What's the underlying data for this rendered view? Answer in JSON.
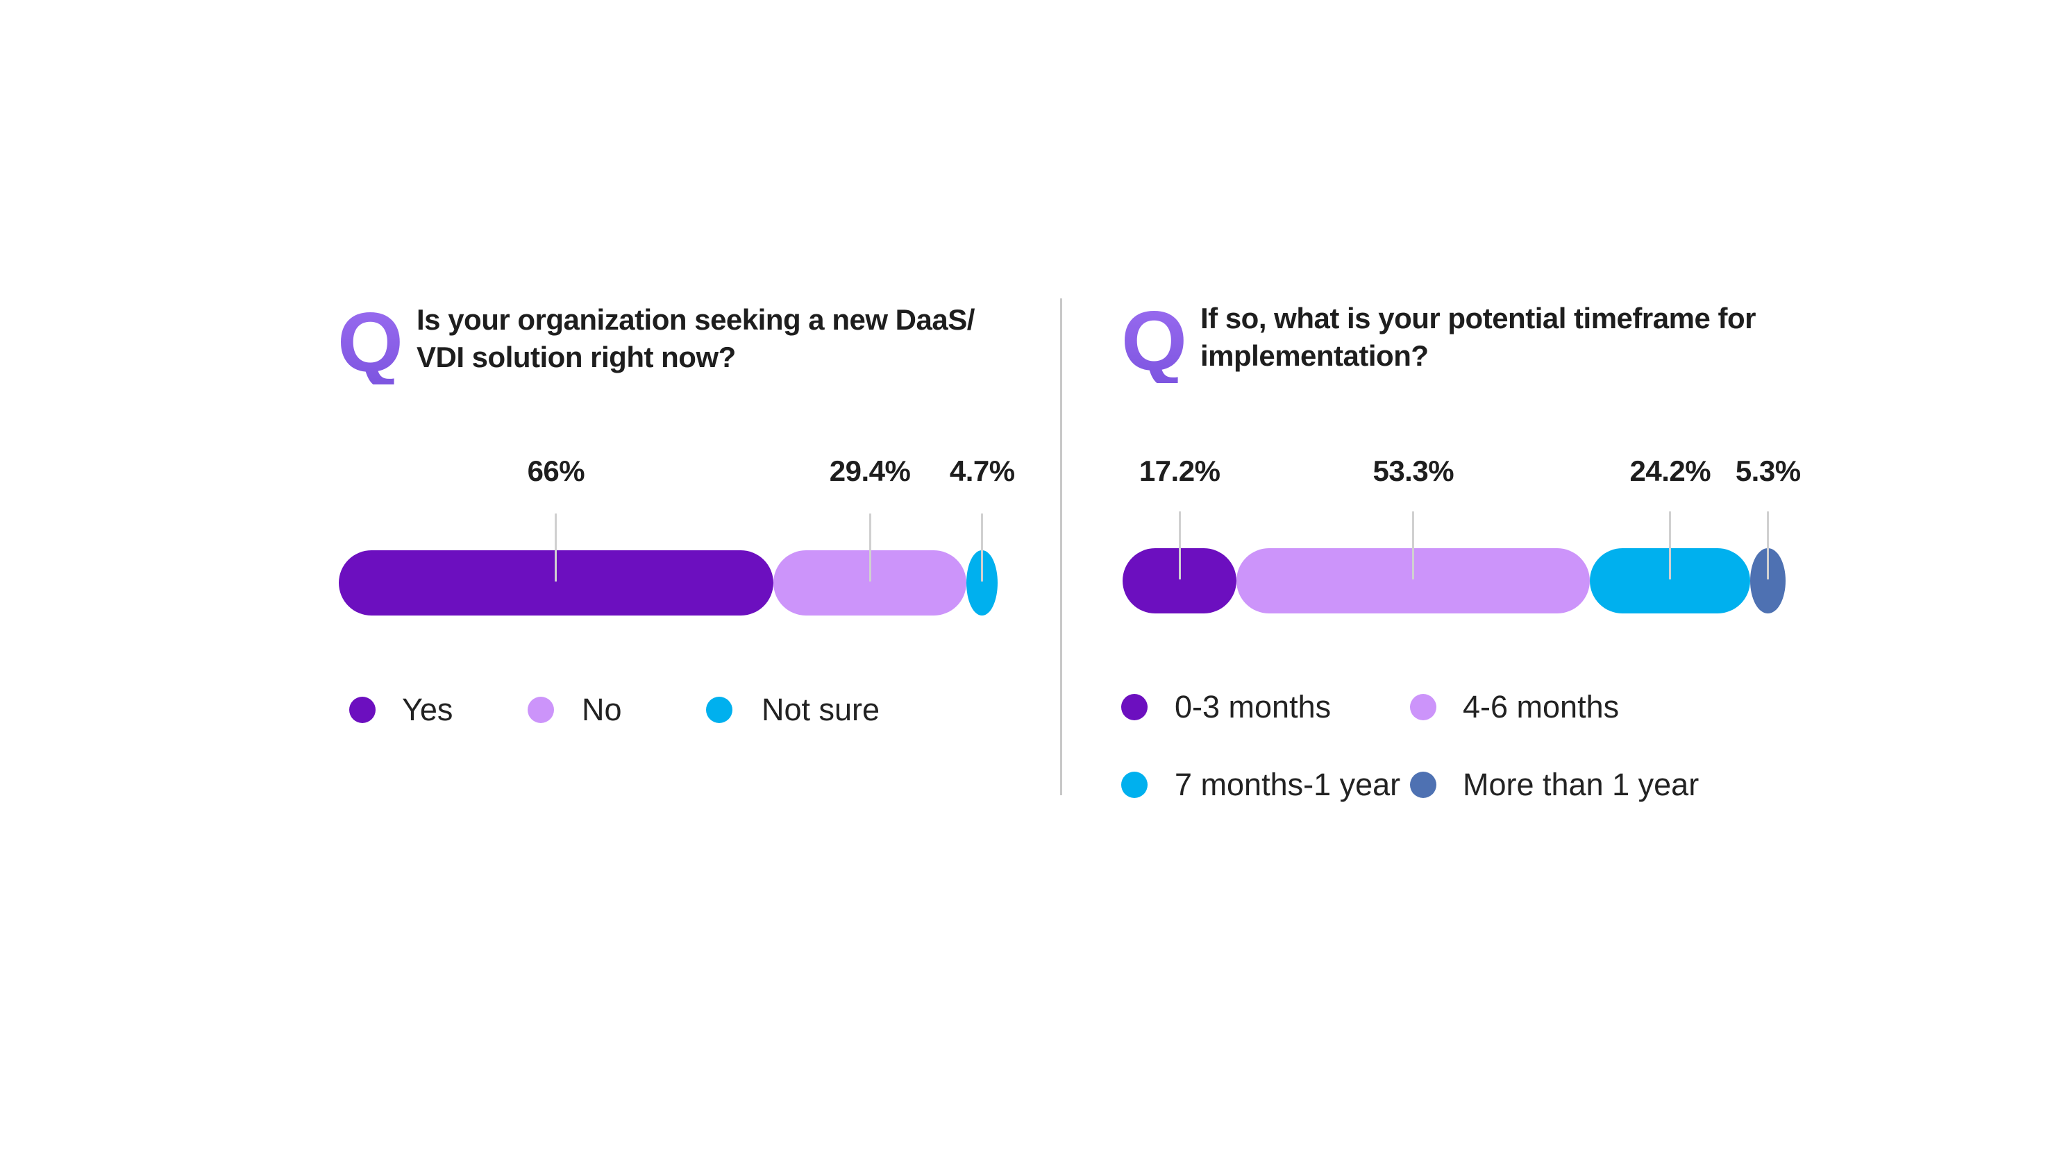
{
  "chart_data": [
    {
      "type": "bar",
      "orientation": "horizontal-stacked",
      "title": "Is your organization seeking a new DaaS/ VDI solution right now?",
      "q_mark": "Q",
      "categories": [
        "Yes",
        "No",
        "Not sure"
      ],
      "values": [
        66,
        29.4,
        4.7
      ],
      "labels": [
        "66%",
        "29.4%",
        "4.7%"
      ],
      "colors": [
        "#6c0fbf",
        "#cc94fa",
        "#00b0ee"
      ],
      "legend_placement": "bottom"
    },
    {
      "type": "bar",
      "orientation": "horizontal-stacked",
      "title": "If so, what is your potential timeframe for implementation?",
      "q_mark": "Q",
      "categories": [
        "0-3 months",
        "4-6 months",
        "7 months-1 year",
        "More than 1 year"
      ],
      "values": [
        17.2,
        53.3,
        24.2,
        5.3
      ],
      "labels": [
        "17.2%",
        "53.3%",
        "24.2%",
        "5.3%"
      ],
      "colors": [
        "#6c0fbf",
        "#cc94fa",
        "#00b0ee",
        "#4e71b2"
      ],
      "legend_placement": "bottom"
    }
  ]
}
